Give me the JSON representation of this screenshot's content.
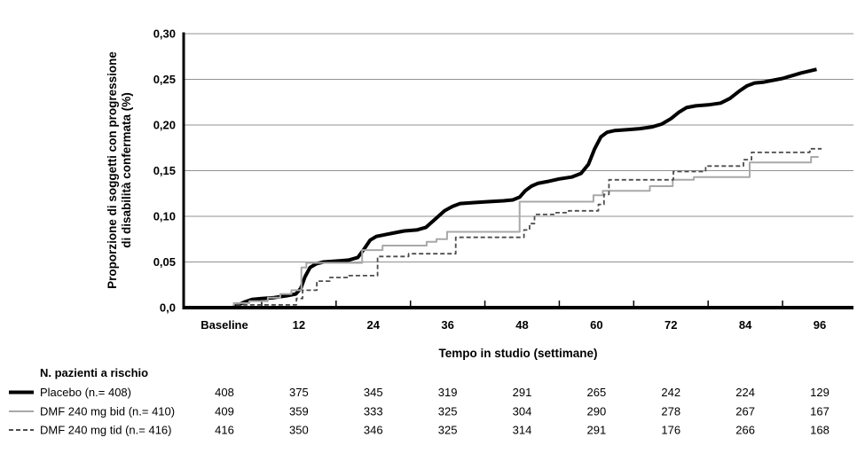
{
  "figure": {
    "background": "#ffffff",
    "risk_table_title": "N. pazienti a rischio"
  },
  "chart_data": {
    "type": "line",
    "subtype": "kaplan-meier-cumulative-incidence",
    "title": "",
    "xlabel": "Tempo in studio (settimane)",
    "ylabel": "Proporzione di soggetti con progressione di disabilità confermata (%)",
    "ylabel_lines": [
      "Proporzione di soggetti con progressione",
      "di disabilità confermata (%)"
    ],
    "x_tick_labels": [
      "Baseline",
      "12",
      "24",
      "36",
      "48",
      "60",
      "72",
      "84",
      "96"
    ],
    "x_tick_weeks": [
      0,
      12,
      24,
      36,
      48,
      60,
      72,
      84,
      96
    ],
    "minor_tick_weeks": [
      6,
      18,
      30,
      42,
      54,
      66,
      78,
      90
    ],
    "y_ticks": [
      {
        "value": 0.0,
        "label": "0,0"
      },
      {
        "value": 0.05,
        "label": "0,05"
      },
      {
        "value": 0.1,
        "label": "0,10"
      },
      {
        "value": 0.15,
        "label": "0,15"
      },
      {
        "value": 0.2,
        "label": "0,20"
      },
      {
        "value": 0.25,
        "label": "0,25"
      },
      {
        "value": 0.3,
        "label": "0,30"
      }
    ],
    "ylim": [
      0,
      0.3
    ],
    "xlim_weeks": [
      -6.6,
      101.5
    ],
    "grid": "horizontal",
    "grid_color": "#919191",
    "axis_color": "#000000",
    "series": [
      {
        "name": "Placebo (n.= 408)",
        "color": "#000000",
        "line_style": "solid",
        "stroke_width": 4,
        "interpolation": "linear",
        "at_risk": [
          408,
          375,
          345,
          319,
          291,
          265,
          242,
          224,
          129
        ],
        "points": [
          [
            0,
            0
          ],
          [
            1.3,
            0
          ],
          [
            2.2,
            0.003
          ],
          [
            3.2,
            0.006
          ],
          [
            4.5,
            0.009
          ],
          [
            6,
            0.01
          ],
          [
            8,
            0.011
          ],
          [
            10,
            0.013
          ],
          [
            11.5,
            0.015
          ],
          [
            12.3,
            0.021
          ],
          [
            13,
            0.034
          ],
          [
            13.8,
            0.044
          ],
          [
            14.8,
            0.048
          ],
          [
            16,
            0.05
          ],
          [
            18,
            0.051
          ],
          [
            20,
            0.052
          ],
          [
            21.5,
            0.055
          ],
          [
            22.5,
            0.064
          ],
          [
            23.5,
            0.074
          ],
          [
            24.5,
            0.078
          ],
          [
            26,
            0.08
          ],
          [
            27.5,
            0.082
          ],
          [
            29,
            0.084
          ],
          [
            31,
            0.085
          ],
          [
            32.5,
            0.088
          ],
          [
            34,
            0.097
          ],
          [
            35.5,
            0.106
          ],
          [
            36.8,
            0.111
          ],
          [
            38,
            0.114
          ],
          [
            40,
            0.115
          ],
          [
            42.5,
            0.116
          ],
          [
            45,
            0.117
          ],
          [
            46.5,
            0.118
          ],
          [
            47.6,
            0.121
          ],
          [
            48.5,
            0.128
          ],
          [
            49.5,
            0.133
          ],
          [
            50.5,
            0.136
          ],
          [
            52,
            0.138
          ],
          [
            54,
            0.141
          ],
          [
            56,
            0.143
          ],
          [
            57.5,
            0.147
          ],
          [
            58.7,
            0.157
          ],
          [
            59.7,
            0.174
          ],
          [
            60.7,
            0.187
          ],
          [
            61.7,
            0.192
          ],
          [
            63,
            0.194
          ],
          [
            65,
            0.195
          ],
          [
            67,
            0.196
          ],
          [
            69,
            0.198
          ],
          [
            70.5,
            0.201
          ],
          [
            72,
            0.207
          ],
          [
            73.3,
            0.214
          ],
          [
            74.5,
            0.219
          ],
          [
            76,
            0.221
          ],
          [
            78,
            0.222
          ],
          [
            80,
            0.224
          ],
          [
            81.5,
            0.229
          ],
          [
            83,
            0.237
          ],
          [
            84.3,
            0.243
          ],
          [
            85.5,
            0.246
          ],
          [
            87,
            0.247
          ],
          [
            88.5,
            0.249
          ],
          [
            90,
            0.251
          ],
          [
            91.5,
            0.254
          ],
          [
            93,
            0.257
          ],
          [
            94.3,
            0.259
          ],
          [
            95.5,
            0.261
          ]
        ]
      },
      {
        "name": "DMF 240 mg bid (n.= 410)",
        "color": "#a8a8a8",
        "line_style": "solid",
        "stroke_width": 2,
        "interpolation": "step-after",
        "at_risk": [
          409,
          359,
          333,
          325,
          304,
          290,
          278,
          267,
          167
        ],
        "points": [
          [
            0,
            0
          ],
          [
            1.5,
            0.005
          ],
          [
            4,
            0.007
          ],
          [
            7,
            0.011
          ],
          [
            9,
            0.015
          ],
          [
            10.8,
            0.019
          ],
          [
            12.4,
            0.044
          ],
          [
            13.2,
            0.049
          ],
          [
            22.2,
            0.063
          ],
          [
            25.5,
            0.068
          ],
          [
            32.6,
            0.072
          ],
          [
            34.2,
            0.075
          ],
          [
            35.9,
            0.083
          ],
          [
            47.6,
            0.116
          ],
          [
            59.5,
            0.123
          ],
          [
            61,
            0.128
          ],
          [
            68.6,
            0.133
          ],
          [
            72.3,
            0.14
          ],
          [
            75.7,
            0.143
          ],
          [
            84.7,
            0.159
          ],
          [
            94.6,
            0.165
          ],
          [
            95.8,
            0.165
          ]
        ]
      },
      {
        "name": "DMF 240 mg tid (n.= 416)",
        "color": "#4d4d4d",
        "line_style": "dashed",
        "stroke_width": 1.8,
        "interpolation": "step-after",
        "at_risk": [
          416,
          350,
          346,
          325,
          314,
          291,
          176,
          266,
          168
        ],
        "points": [
          [
            0,
            0
          ],
          [
            1.8,
            0.003
          ],
          [
            11.6,
            0.01
          ],
          [
            12.6,
            0.019
          ],
          [
            14.9,
            0.029
          ],
          [
            17,
            0.033
          ],
          [
            20,
            0.035
          ],
          [
            24.7,
            0.056
          ],
          [
            29.7,
            0.059
          ],
          [
            37.3,
            0.077
          ],
          [
            48.3,
            0.085
          ],
          [
            49.2,
            0.092
          ],
          [
            50,
            0.102
          ],
          [
            53.5,
            0.104
          ],
          [
            55.5,
            0.106
          ],
          [
            60.3,
            0.113
          ],
          [
            61.2,
            0.124
          ],
          [
            62,
            0.14
          ],
          [
            72.4,
            0.149
          ],
          [
            77.6,
            0.155
          ],
          [
            83.7,
            0.162
          ],
          [
            85,
            0.17
          ],
          [
            94.4,
            0.174
          ],
          [
            96.3,
            0.174
          ]
        ]
      }
    ]
  }
}
